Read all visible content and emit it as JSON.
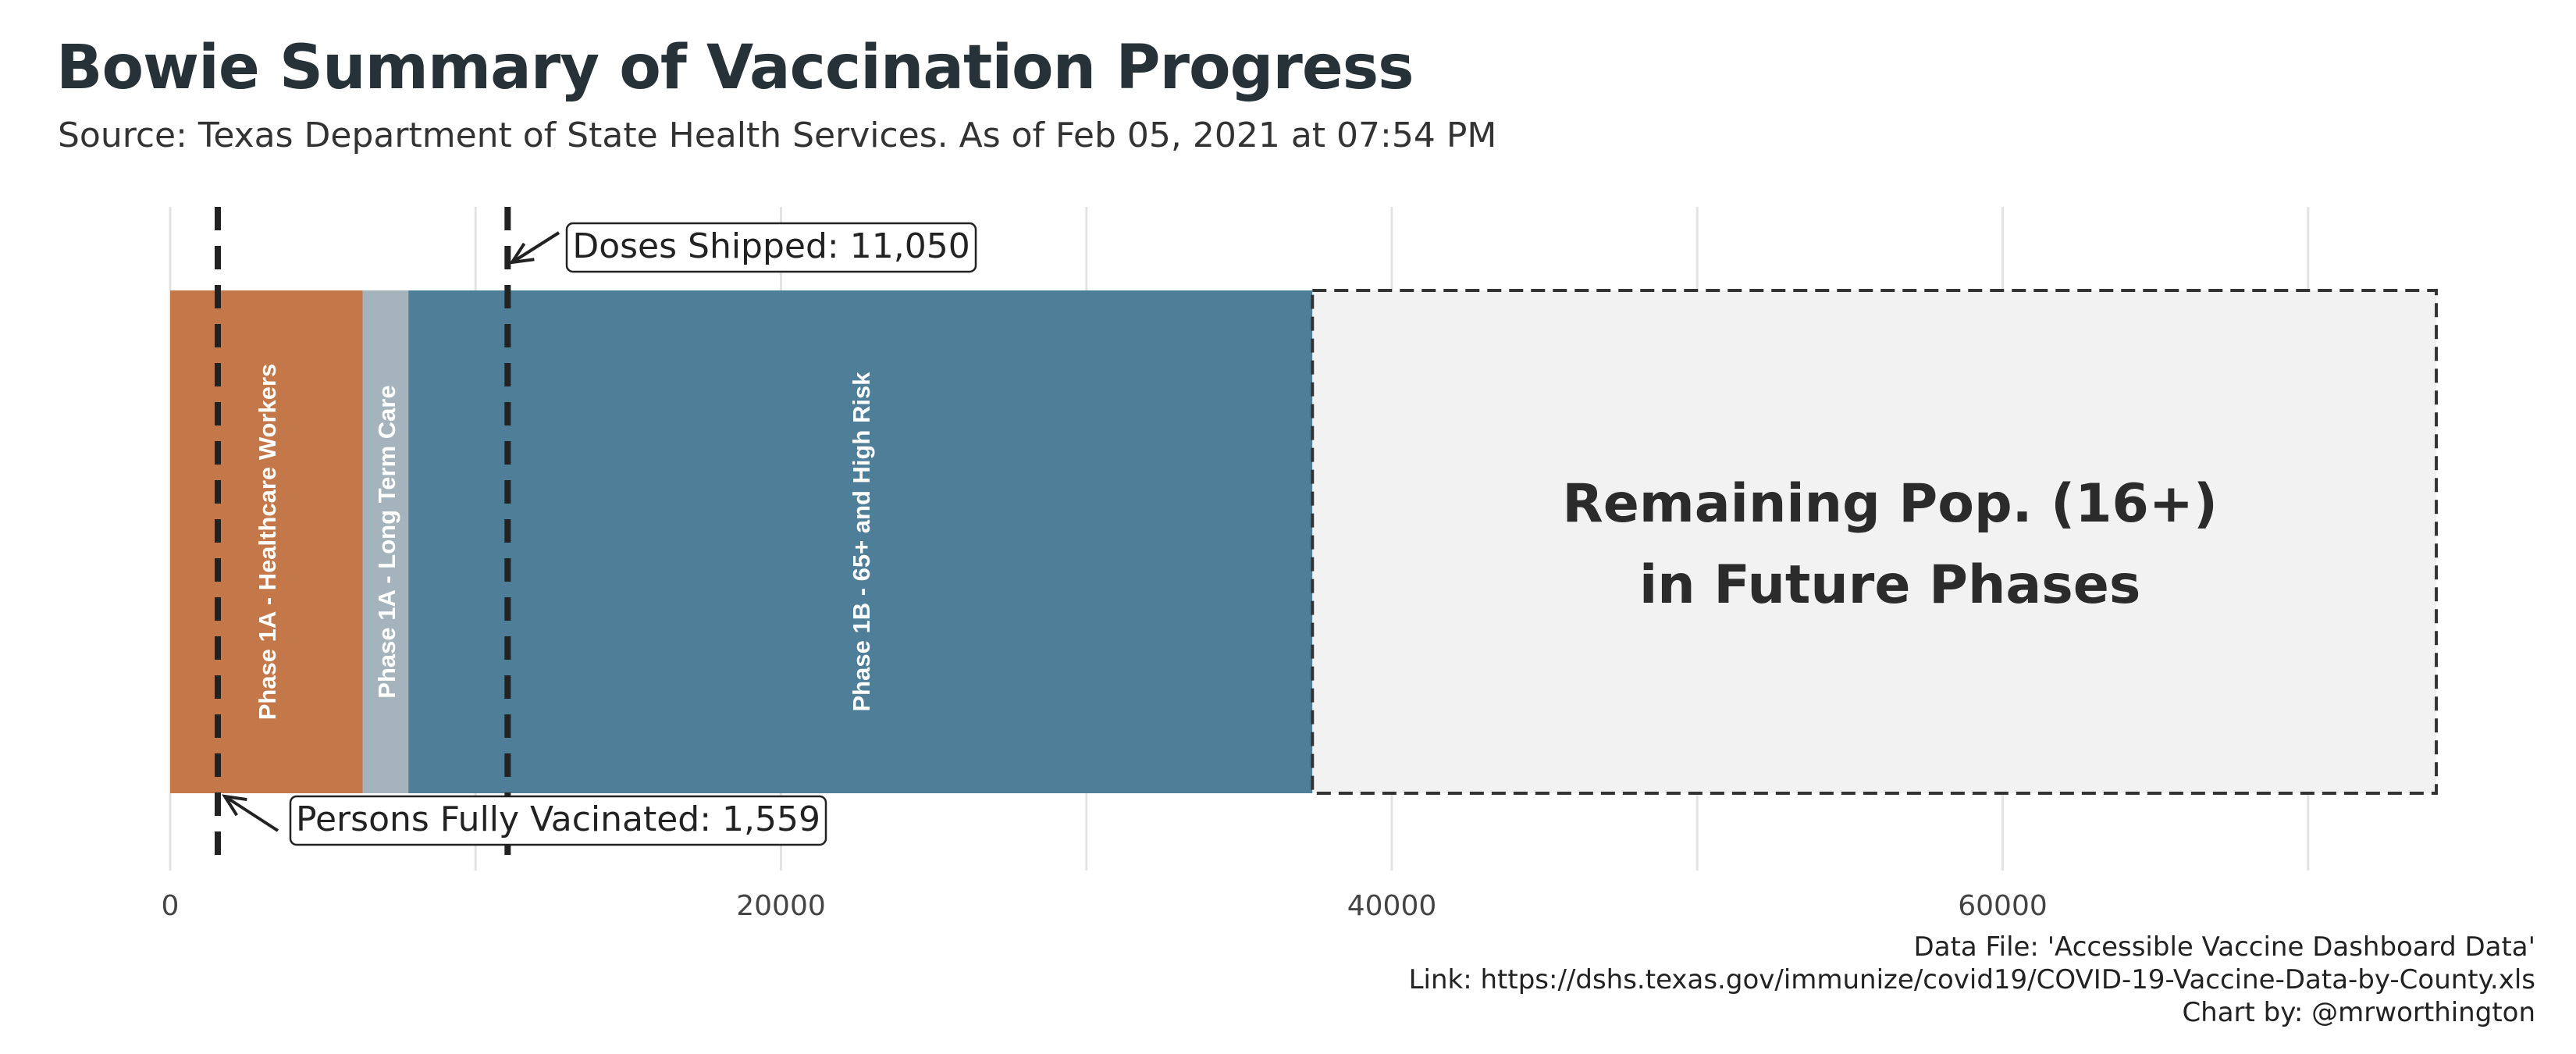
{
  "header": {
    "title": "Bowie Summary of Vaccination Progress",
    "subtitle": "Source: Texas Department of State Health Services. As of Feb 05, 2021 at 07:54 PM"
  },
  "caption": {
    "line1": "Data File: 'Accessible Vaccine Dashboard Data'",
    "line2": "Link: https://dshs.texas.gov/immunize/covid19/COVID-19-Vaccine-Data-by-County.xls",
    "line3": "Chart by: @mrworthington"
  },
  "colors": {
    "phase1a_healthcare": "#c4784a",
    "phase1a_ltc": "#a5b3bc",
    "phase1b": "#4f7e99",
    "remaining": "#f2f2f2",
    "grid": "#e3e3e3",
    "marker": "#222222"
  },
  "chart_data": {
    "type": "bar",
    "orientation": "horizontal-stacked",
    "xlim": [
      0,
      75000
    ],
    "x_ticks": [
      0,
      20000,
      40000,
      60000
    ],
    "x_tick_labels": [
      "0",
      "20000",
      "40000",
      "60000"
    ],
    "grid": true,
    "segments": [
      {
        "label": "Phase 1A - Healthcare Workers",
        "start": 0,
        "end": 6300,
        "color": "#c4784a"
      },
      {
        "label": "Phase 1A - Long Term Care",
        "start": 6300,
        "end": 7800,
        "color": "#a5b3bc"
      },
      {
        "label": "Phase 1B - 65+ and High Risk",
        "start": 7800,
        "end": 37400,
        "color": "#4f7e99"
      },
      {
        "label": "Remaining Pop. (16+)|in Future Phases",
        "start": 37400,
        "end": 74200,
        "color": "#f2f2f2",
        "dashed": true
      }
    ],
    "markers": [
      {
        "label": "Doses Shipped: 11,050",
        "value": 11050
      },
      {
        "label": "Persons Fully Vacinated: 1,559",
        "value": 1559
      }
    ]
  }
}
